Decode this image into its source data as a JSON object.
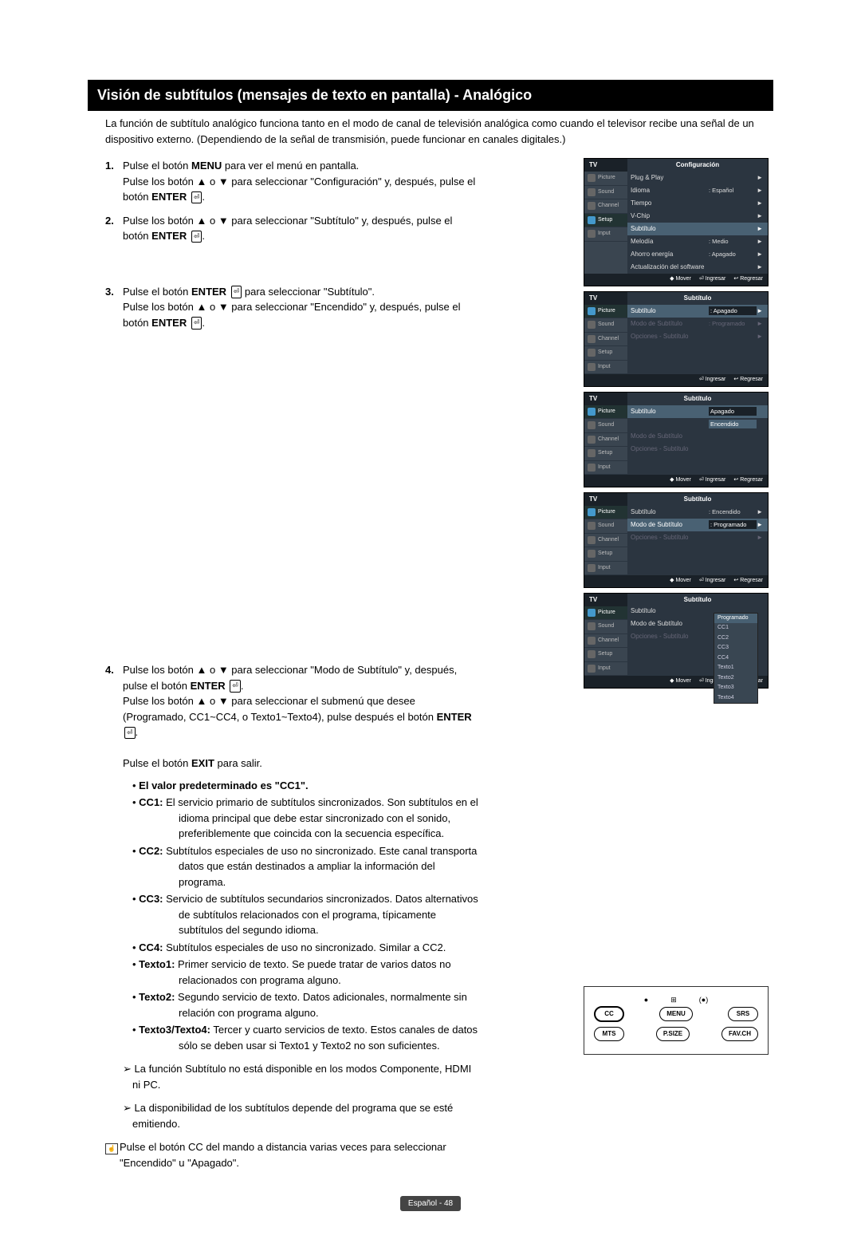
{
  "title": "Visión de subtítulos (mensajes de texto en pantalla) - Analógico",
  "intro": "La función de subtítulo analógico funciona tanto en el modo de canal de televisión analógica como cuando el televisor recibe una señal de un dispositivo externo. (Dependiendo de la señal de transmisión, puede funcionar en canales digitales.)",
  "steps": {
    "s1": {
      "num": "1.",
      "l1": "Pulse el botón ",
      "l1b": "MENU",
      "l1c": " para ver el menú en pantalla.",
      "l2": "Pulse los botón ▲ o ▼ para seleccionar \"Configuración\" y, después, pulse el botón ",
      "enter": "ENTER",
      "dot": "."
    },
    "s2": {
      "num": "2.",
      "l1": "Pulse los botón ▲ o ▼ para seleccionar \"Subtítulo\" y, después, pulse el botón ",
      "enter": "ENTER",
      "dot": "."
    },
    "s3": {
      "num": "3.",
      "l1a": "Pulse el botón ",
      "l1b": "ENTER",
      "l1c": " para seleccionar \"Subtítulo\".",
      "l2": "Pulse los botón ▲ o ▼ para seleccionar \"Encendido\" y, después, pulse el botón ",
      "enter": "ENTER",
      "dot": "."
    },
    "s4": {
      "num": "4.",
      "l1": "Pulse los botón ▲ o ▼ para seleccionar \"Modo de Subtítulo\" y, después, pulse el botón ",
      "l1b": "ENTER",
      "l1c": ".",
      "l2a": "Pulse los botón ▲ o ▼ para seleccionar el submenú que desee (Programado, CC1~CC4, o Texto1~Texto4), pulse después el botón ",
      "l2b": "ENTER",
      "l2c": ".",
      "l3a": "Pulse el botón ",
      "l3b": "EXIT",
      "l3c": " para salir.",
      "default_label": "El valor predeterminado es \"CC1\".",
      "cc1": {
        "k": "CC1:",
        "v": " El servicio primario de subtítulos sincronizados. Son subtítulos en el idioma principal que debe estar sincronizado con el sonido, preferiblemente que coincida con la secuencia específica."
      },
      "cc2": {
        "k": "CC2:",
        "v": " Subtítulos especiales de uso no sincronizado. Este canal transporta datos que están destinados a ampliar la información del programa."
      },
      "cc3": {
        "k": "CC3:",
        "v": " Servicio de subtítulos secundarios sincronizados. Datos alternativos de subtítulos relacionados con el programa, típicamente subtítulos del segundo idioma."
      },
      "cc4": {
        "k": "CC4:",
        "v": " Subtítulos especiales de uso no sincronizado. Similar a CC2."
      },
      "t1": {
        "k": "Texto1:",
        "v": " Primer servicio de texto. Se puede tratar de varios datos no relacionados con programa alguno."
      },
      "t2": {
        "k": "Texto2:",
        "v": " Segundo servicio de texto. Datos adicionales, normalmente sin relación con programa alguno."
      },
      "t3": {
        "k": "Texto3/Texto4:",
        "v": " Tercer y cuarto servicios de texto. Estos canales de datos sólo se deben usar si Texto1 y Texto2 no son suficientes."
      }
    }
  },
  "notes": {
    "n1": "➢ La función Subtítulo no está disponible en los modos Componente, HDMI ni PC.",
    "n2": "➢ La disponibilidad de los subtítulos depende del programa que se esté emitiendo.",
    "remote": "Pulse el botón CC del mando a distancia varias veces para seleccionar \"Encendido\" u \"Apagado\"."
  },
  "osd_tabs": [
    "Picture",
    "Sound",
    "Channel",
    "Setup",
    "Input"
  ],
  "osd": {
    "tv": "TV",
    "m1": {
      "title": "Configuración",
      "rows": [
        {
          "l": "Plug & Play",
          "v": "",
          "a": "►"
        },
        {
          "l": "Idioma",
          "v": ": Español",
          "a": "►"
        },
        {
          "l": "Tiempo",
          "v": "",
          "a": "►"
        },
        {
          "l": "V-Chip",
          "v": "",
          "a": "►"
        },
        {
          "l": "Subtítulo",
          "v": "",
          "a": "►",
          "hi": true
        },
        {
          "l": "Melodía",
          "v": ": Medio",
          "a": "►"
        },
        {
          "l": "Ahorro energía",
          "v": ": Apagado",
          "a": "►"
        },
        {
          "l": "Actualización del software",
          "v": "",
          "a": "►"
        }
      ],
      "footer": [
        "◆ Mover",
        "⏎ Ingresar",
        "↩ Regresar"
      ]
    },
    "m2": {
      "title": "Subtítulo",
      "rows": [
        {
          "l": "Subtítulo",
          "v": ": Apagado",
          "a": "►",
          "hi": true
        },
        {
          "l": "Modo de Subtítulo",
          "v": ": Programado",
          "a": "►",
          "dim": true
        },
        {
          "l": "Opciones - Subtítulo",
          "v": "",
          "a": "►",
          "dim": true
        }
      ],
      "footer": [
        "⏎ Ingresar",
        "↩ Regresar"
      ]
    },
    "m3": {
      "title": "Subtítulo",
      "rows": [
        {
          "l": "Subtítulo",
          "v": "Apagado",
          "a": "",
          "hi": true,
          "opt": "Encendido"
        },
        {
          "l": "Modo de Subtítulo",
          "v": "",
          "a": "",
          "dim": true
        },
        {
          "l": "Opciones - Subtítulo",
          "v": "",
          "a": "",
          "dim": true
        }
      ],
      "footer": [
        "◆ Mover",
        "⏎ Ingresar",
        "↩ Regresar"
      ]
    },
    "m4": {
      "title": "Subtítulo",
      "rows": [
        {
          "l": "Subtítulo",
          "v": ": Encendido",
          "a": "►"
        },
        {
          "l": "Modo de Subtítulo",
          "v": ": Programado",
          "a": "►",
          "hi": true
        },
        {
          "l": "Opciones - Subtítulo",
          "v": "",
          "a": "►",
          "dim": true
        }
      ],
      "footer": [
        "◆ Mover",
        "⏎ Ingresar",
        "↩ Regresar"
      ]
    },
    "m5": {
      "title": "Subtítulo",
      "rows": [
        {
          "l": "Subtítulo",
          "v": "",
          "a": ""
        },
        {
          "l": "Modo de Subtítulo",
          "v": "",
          "a": ""
        },
        {
          "l": "Opciones - Subtítulo",
          "v": "",
          "a": "",
          "dim": true
        }
      ],
      "dropdown": [
        "Programado",
        "CC1",
        "CC2",
        "CC3",
        "CC4",
        "Texto1",
        "Texto2",
        "Texto3",
        "Texto4"
      ],
      "footer": [
        "◆ Mover",
        "⏎ Ingresar",
        "↩ Regresar"
      ]
    }
  },
  "remote": {
    "cc": "CC",
    "menu": "MENU",
    "srs": "SRS",
    "mts": "MTS",
    "psize": "P.SIZE",
    "fav": "FAV.CH"
  },
  "page_label": "Español - 48"
}
